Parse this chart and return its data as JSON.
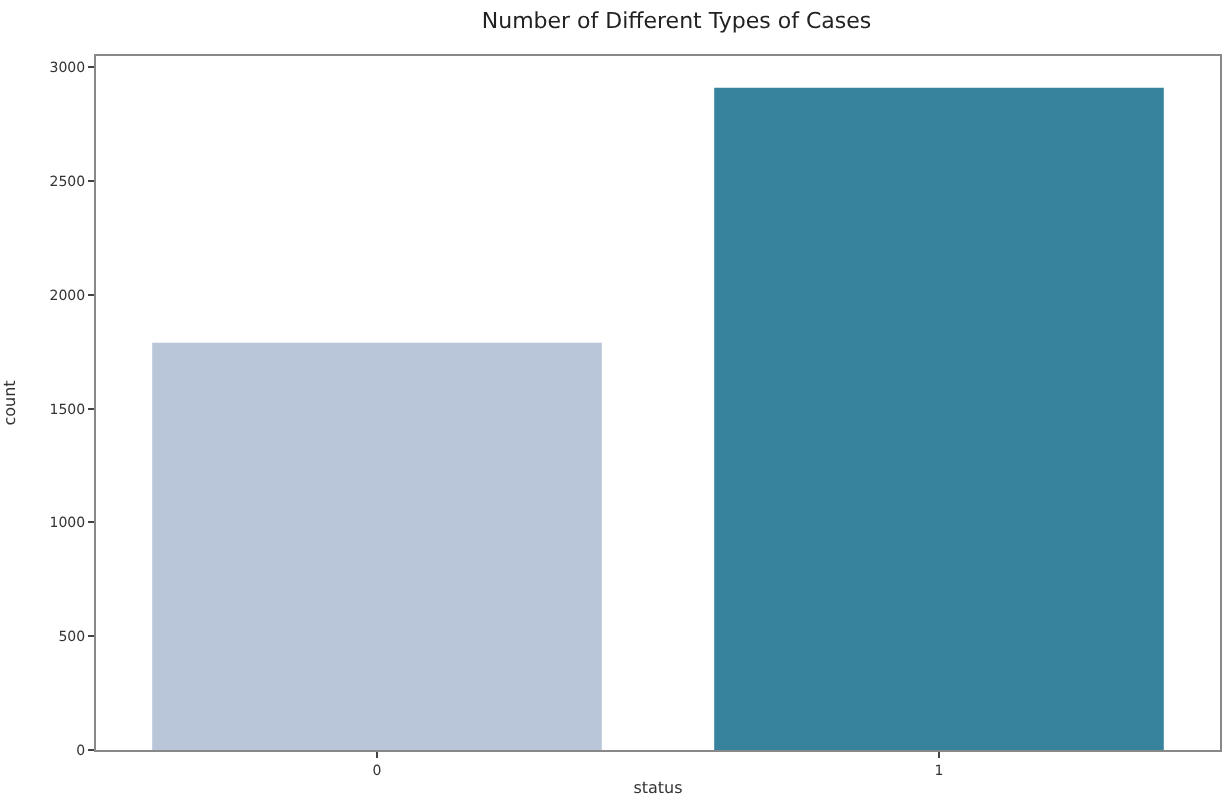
{
  "chart_data": {
    "type": "bar",
    "title": "Number of Different Types of Cases",
    "xlabel": "status",
    "ylabel": "count",
    "categories": [
      "0",
      "1"
    ],
    "values": [
      1790,
      2910
    ],
    "colors": [
      "#b9c6da",
      "#37839d"
    ],
    "ylim": [
      0,
      3050
    ],
    "yticks": [
      0,
      500,
      1000,
      1500,
      2000,
      2500,
      3000
    ]
  }
}
